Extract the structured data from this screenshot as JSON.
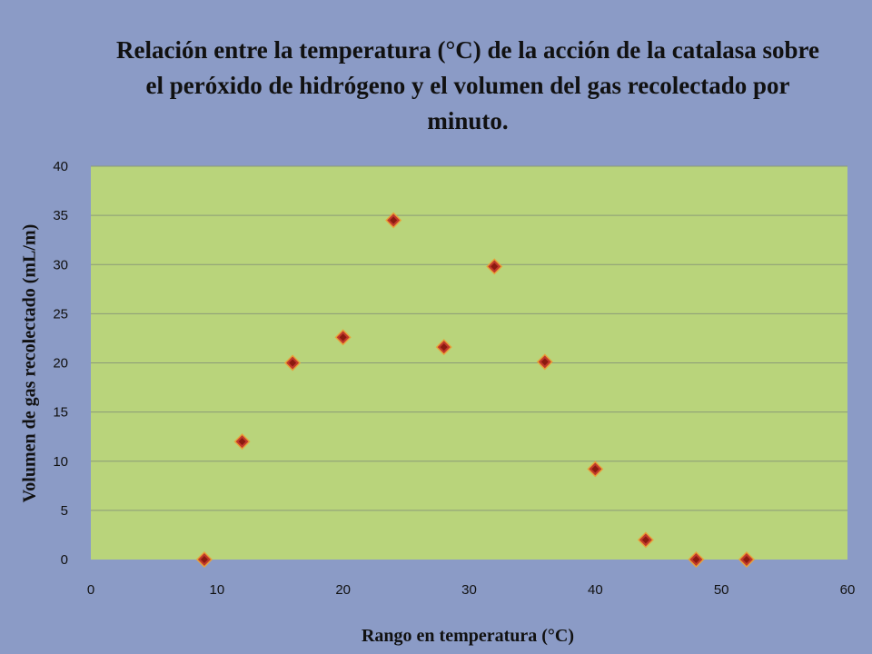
{
  "chart_data": {
    "type": "scatter",
    "title": "Relación entre la temperatura (°C) de la acción de la catalasa sobre el peróxido de hidrógeno y el volumen del gas recolectado por minuto.",
    "xlabel": "Rango en temperatura (°C)",
    "ylabel": "Volumen de gas recolectado (mL/m)",
    "xlim": [
      0,
      60
    ],
    "ylim": [
      0,
      40
    ],
    "x_ticks": [
      "0",
      "10",
      "20",
      "30",
      "40",
      "50",
      "60"
    ],
    "y_ticks": [
      "0",
      "5",
      "10",
      "15",
      "20",
      "25",
      "30",
      "35",
      "40"
    ],
    "grid": "horizontal",
    "legend": "none",
    "marker": "diamond",
    "series": [
      {
        "points": [
          {
            "x": 9,
            "y": 0
          },
          {
            "x": 12,
            "y": 12
          },
          {
            "x": 16,
            "y": 20
          },
          {
            "x": 20,
            "y": 22.6
          },
          {
            "x": 24,
            "y": 34.5
          },
          {
            "x": 28,
            "y": 21.6
          },
          {
            "x": 32,
            "y": 29.8
          },
          {
            "x": 36,
            "y": 20.1
          },
          {
            "x": 40,
            "y": 9.2
          },
          {
            "x": 44,
            "y": 2
          },
          {
            "x": 48,
            "y": 0
          },
          {
            "x": 52,
            "y": 0
          }
        ]
      }
    ],
    "colors": {
      "page_background": "#8b9bc6",
      "plot_background": "#b9d47b",
      "gridline": "#8a9a78",
      "marker_fill": "#c0392b",
      "marker_inner": "#8b1a10",
      "marker_border": "#e8a23a"
    }
  }
}
